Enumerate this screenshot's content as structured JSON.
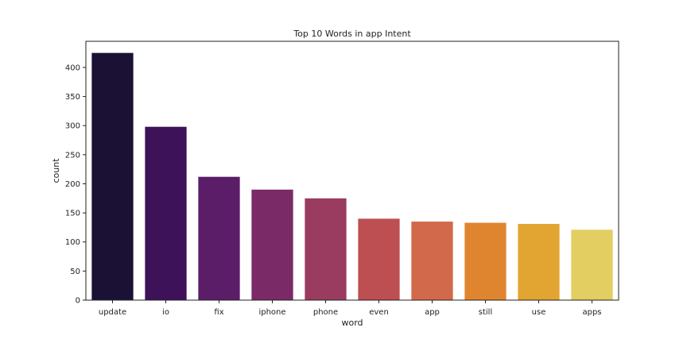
{
  "chart_data": {
    "type": "bar",
    "title": "Top 10 Words in app Intent",
    "xlabel": "word",
    "ylabel": "count",
    "categories": [
      "update",
      "io",
      "fix",
      "iphone",
      "phone",
      "even",
      "app",
      "still",
      "use",
      "apps"
    ],
    "values": [
      425,
      298,
      212,
      190,
      175,
      140,
      135,
      133,
      131,
      121
    ],
    "ylim": [
      0,
      445
    ],
    "yticks": [
      0,
      50,
      100,
      150,
      200,
      250,
      300,
      350,
      400
    ],
    "grid": false,
    "legend": "none",
    "colors": [
      "#1b1135",
      "#3d1259",
      "#5b1d67",
      "#7a2a67",
      "#9a3c5f",
      "#bd4f53",
      "#d2694a",
      "#e0852f",
      "#e3a531",
      "#e2ce61"
    ]
  }
}
